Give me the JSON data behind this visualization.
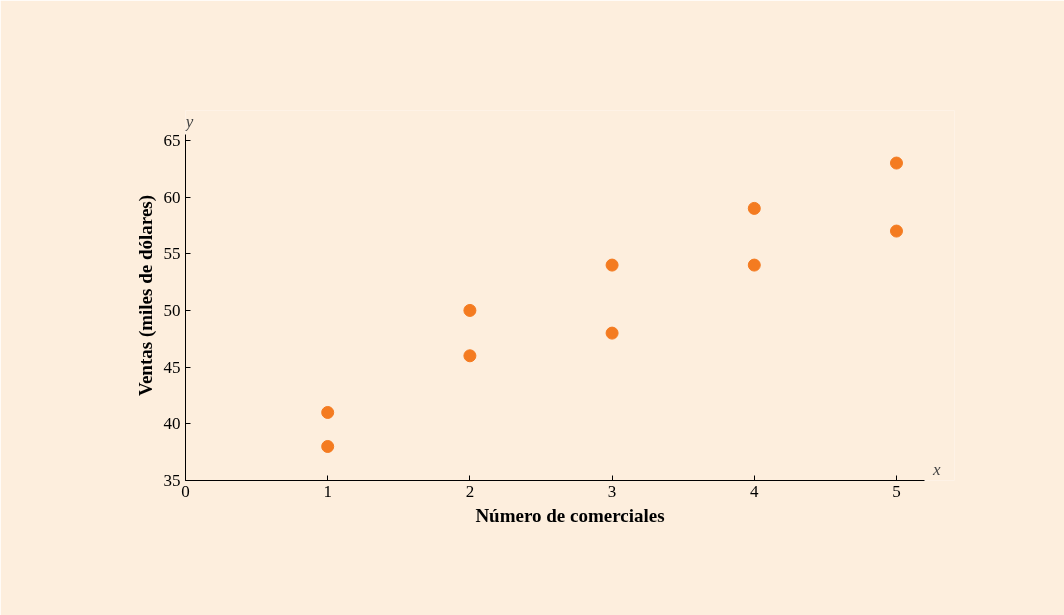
{
  "chart_data": {
    "type": "scatter",
    "xlabel": "Número de comerciales",
    "ylabel": "Ventas (miles de dólares)",
    "annotations": [
      "y",
      "x"
    ],
    "x": [
      1,
      1,
      2,
      2,
      3,
      3,
      4,
      4,
      5,
      5
    ],
    "series": [
      {
        "color": "#f47b20",
        "values": [
          41,
          38,
          50,
          46,
          54,
          48,
          59,
          54,
          63,
          57
        ]
      }
    ],
    "xlim": [
      0,
      5.2
    ],
    "ylim": [
      35,
      65.5
    ],
    "xticks": [
      0,
      1,
      2,
      3,
      4,
      5
    ],
    "yticks": [
      35,
      40,
      45,
      50,
      55,
      60,
      65
    ],
    "grid": false,
    "marker": "circle"
  }
}
